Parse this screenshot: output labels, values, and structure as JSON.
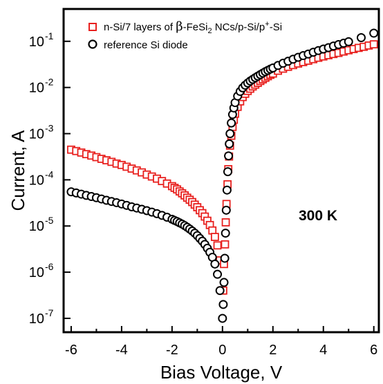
{
  "chart_data": {
    "type": "scatter",
    "xlabel": "Bias Voltage, V",
    "ylabel": "Current, A",
    "xlim": [
      -6.3,
      6.2
    ],
    "ylim_log10": [
      -7.3,
      -0.3
    ],
    "y_scale": "log",
    "x_ticks": [
      -6,
      -4,
      -2,
      0,
      2,
      4,
      6
    ],
    "x_tick_labels": [
      "-6",
      "-4",
      "-2",
      "0",
      "2",
      "4",
      "6"
    ],
    "y_ticks_exp": [
      -7,
      -6,
      -5,
      -4,
      -3,
      -2,
      -1
    ],
    "y_tick_base": "10",
    "y_tick_exponents": [
      "-7",
      "-6",
      "-5",
      "-4",
      "-3",
      "-2",
      "-1"
    ],
    "legend_position": "top-left",
    "annotation": "300 K",
    "series": [
      {
        "name_parts": {
          "a": "n-Si/7 layers of ",
          "beta": "β",
          "b": "-FeSi",
          "sub": "2",
          "c": " NCs/p-Si/p",
          "sup": "+",
          "d": "-Si"
        },
        "marker": "square",
        "color": "#e8201e",
        "points": [
          [
            -6.0,
            0.00045
          ],
          [
            -5.8,
            0.00042
          ],
          [
            -5.6,
            0.00039
          ],
          [
            -5.4,
            0.00036
          ],
          [
            -5.2,
            0.000335
          ],
          [
            -5.0,
            0.00031
          ],
          [
            -4.8,
            0.000285
          ],
          [
            -4.6,
            0.000265
          ],
          [
            -4.4,
            0.000245
          ],
          [
            -4.2,
            0.000225
          ],
          [
            -4.0,
            0.00021
          ],
          [
            -3.8,
            0.000192
          ],
          [
            -3.6,
            0.000175
          ],
          [
            -3.4,
            0.00016
          ],
          [
            -3.2,
            0.000145
          ],
          [
            -3.0,
            0.00013
          ],
          [
            -2.8,
            0.000118
          ],
          [
            -2.6,
            0.000106
          ],
          [
            -2.4,
            9.4e-05
          ],
          [
            -2.2,
            8.3e-05
          ],
          [
            -2.0,
            7.3e-05
          ],
          [
            -1.9,
            6.7e-05
          ],
          [
            -1.8,
            6.2e-05
          ],
          [
            -1.7,
            5.6e-05
          ],
          [
            -1.6,
            5.1e-05
          ],
          [
            -1.5,
            4.6e-05
          ],
          [
            -1.4,
            4.1e-05
          ],
          [
            -1.3,
            3.7e-05
          ],
          [
            -1.2,
            3.3e-05
          ],
          [
            -1.1,
            2.9e-05
          ],
          [
            -1.0,
            2.55e-05
          ],
          [
            -0.9,
            2.2e-05
          ],
          [
            -0.8,
            1.9e-05
          ],
          [
            -0.7,
            1.6e-05
          ],
          [
            -0.6,
            1.3e-05
          ],
          [
            -0.5,
            1.05e-05
          ],
          [
            -0.4,
            8e-06
          ],
          [
            -0.3,
            5.8e-06
          ],
          [
            -0.2,
            3.8e-06
          ],
          [
            -0.1,
            1.8e-06
          ],
          [
            -0.03,
            4e-07
          ],
          [
            0.03,
            4e-07
          ],
          [
            0.06,
            1.5e-06
          ],
          [
            0.1,
            4e-06
          ],
          [
            0.13,
            1.2e-05
          ],
          [
            0.16,
            3e-05
          ],
          [
            0.2,
            8e-05
          ],
          [
            0.23,
            0.00017
          ],
          [
            0.26,
            0.00032
          ],
          [
            0.3,
            0.00055
          ],
          [
            0.35,
            0.0009
          ],
          [
            0.4,
            0.0014
          ],
          [
            0.45,
            0.002
          ],
          [
            0.5,
            0.0027
          ],
          [
            0.6,
            0.0038
          ],
          [
            0.7,
            0.005
          ],
          [
            0.8,
            0.0062
          ],
          [
            0.9,
            0.0073
          ],
          [
            1.0,
            0.0084
          ],
          [
            1.1,
            0.0094
          ],
          [
            1.2,
            0.0105
          ],
          [
            1.3,
            0.0115
          ],
          [
            1.4,
            0.0126
          ],
          [
            1.5,
            0.0138
          ],
          [
            1.6,
            0.015
          ],
          [
            1.7,
            0.0162
          ],
          [
            1.8,
            0.0175
          ],
          [
            1.9,
            0.0188
          ],
          [
            2.0,
            0.02
          ],
          [
            2.2,
            0.023
          ],
          [
            2.4,
            0.0255
          ],
          [
            2.6,
            0.028
          ],
          [
            2.8,
            0.0305
          ],
          [
            3.0,
            0.033
          ],
          [
            3.2,
            0.0355
          ],
          [
            3.4,
            0.038
          ],
          [
            3.6,
            0.041
          ],
          [
            3.8,
            0.044
          ],
          [
            4.0,
            0.047
          ],
          [
            4.2,
            0.05
          ],
          [
            4.4,
            0.053
          ],
          [
            4.6,
            0.056
          ],
          [
            4.8,
            0.06
          ],
          [
            5.0,
            0.064
          ],
          [
            5.2,
            0.068
          ],
          [
            5.4,
            0.072
          ],
          [
            5.6,
            0.076
          ],
          [
            5.8,
            0.081
          ],
          [
            6.0,
            0.086
          ]
        ]
      },
      {
        "name": "reference Si diode",
        "marker": "circle",
        "color": "#000000",
        "points": [
          [
            -6.0,
            5.5e-05
          ],
          [
            -5.8,
            5.2e-05
          ],
          [
            -5.6,
            4.9e-05
          ],
          [
            -5.4,
            4.6e-05
          ],
          [
            -5.2,
            4.35e-05
          ],
          [
            -5.0,
            4.1e-05
          ],
          [
            -4.8,
            3.85e-05
          ],
          [
            -4.6,
            3.6e-05
          ],
          [
            -4.4,
            3.4e-05
          ],
          [
            -4.2,
            3.2e-05
          ],
          [
            -4.0,
            3e-05
          ],
          [
            -3.8,
            2.8e-05
          ],
          [
            -3.6,
            2.6e-05
          ],
          [
            -3.4,
            2.45e-05
          ],
          [
            -3.2,
            2.3e-05
          ],
          [
            -3.0,
            2.15e-05
          ],
          [
            -2.8,
            2e-05
          ],
          [
            -2.6,
            1.85e-05
          ],
          [
            -2.4,
            1.7e-05
          ],
          [
            -2.2,
            1.55e-05
          ],
          [
            -2.0,
            1.4e-05
          ],
          [
            -1.9,
            1.32e-05
          ],
          [
            -1.8,
            1.25e-05
          ],
          [
            -1.7,
            1.17e-05
          ],
          [
            -1.6,
            1.1e-05
          ],
          [
            -1.5,
            1.02e-05
          ],
          [
            -1.4,
            9.4e-06
          ],
          [
            -1.3,
            8.6e-06
          ],
          [
            -1.2,
            7.8e-06
          ],
          [
            -1.1,
            7e-06
          ],
          [
            -1.0,
            6.2e-06
          ],
          [
            -0.9,
            5.4e-06
          ],
          [
            -0.8,
            4.7e-06
          ],
          [
            -0.7,
            4e-06
          ],
          [
            -0.6,
            3.3e-06
          ],
          [
            -0.5,
            2.7e-06
          ],
          [
            -0.4,
            2.1e-06
          ],
          [
            -0.3,
            1.5e-06
          ],
          [
            -0.2,
            9e-07
          ],
          [
            -0.1,
            4e-07
          ],
          [
            0.0,
            1e-07
          ],
          [
            0.03,
            2e-07
          ],
          [
            0.06,
            6e-07
          ],
          [
            0.09,
            2e-06
          ],
          [
            0.12,
            7e-06
          ],
          [
            0.15,
            2.2e-05
          ],
          [
            0.18,
            6e-05
          ],
          [
            0.21,
            0.00015
          ],
          [
            0.24,
            0.00033
          ],
          [
            0.27,
            0.0006
          ],
          [
            0.3,
            0.001
          ],
          [
            0.35,
            0.0017
          ],
          [
            0.4,
            0.0026
          ],
          [
            0.45,
            0.0036
          ],
          [
            0.5,
            0.0047
          ],
          [
            0.6,
            0.0065
          ],
          [
            0.7,
            0.0082
          ],
          [
            0.8,
            0.0098
          ],
          [
            0.9,
            0.0112
          ],
          [
            1.0,
            0.0125
          ],
          [
            1.1,
            0.0138
          ],
          [
            1.2,
            0.015
          ],
          [
            1.3,
            0.0163
          ],
          [
            1.4,
            0.0176
          ],
          [
            1.5,
            0.019
          ],
          [
            1.6,
            0.0205
          ],
          [
            1.7,
            0.022
          ],
          [
            1.8,
            0.0235
          ],
          [
            1.9,
            0.025
          ],
          [
            2.0,
            0.0265
          ],
          [
            2.2,
            0.03
          ],
          [
            2.4,
            0.0335
          ],
          [
            2.6,
            0.037
          ],
          [
            2.8,
            0.041
          ],
          [
            3.0,
            0.045
          ],
          [
            3.2,
            0.049
          ],
          [
            3.4,
            0.053
          ],
          [
            3.6,
            0.058
          ],
          [
            3.8,
            0.063
          ],
          [
            4.0,
            0.068
          ],
          [
            4.2,
            0.073
          ],
          [
            4.4,
            0.079
          ],
          [
            4.6,
            0.085
          ],
          [
            4.8,
            0.091
          ],
          [
            5.0,
            0.098
          ],
          [
            5.5,
            0.12
          ],
          [
            6.0,
            0.15
          ]
        ]
      }
    ]
  }
}
